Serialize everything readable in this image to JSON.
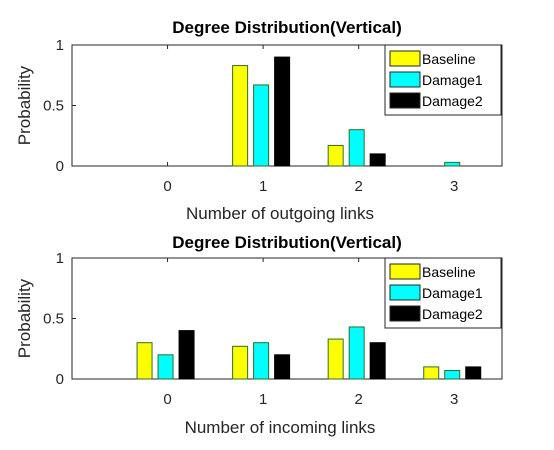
{
  "chart_data": [
    {
      "type": "bar",
      "title": "Degree Distribution(Vertical)",
      "xlabel": "Number of outgoing links",
      "ylabel": "Probability",
      "categories": [
        "0",
        "1",
        "2",
        "3"
      ],
      "ylim": [
        0,
        1
      ],
      "yticks": [
        "0",
        "0.5",
        "1"
      ],
      "xlim": [
        -1,
        3.5
      ],
      "grid": false,
      "legend_position": "top-right",
      "series": [
        {
          "name": "Baseline",
          "values": [
            0,
            0.83,
            0.17,
            0
          ],
          "color": "#ffff00"
        },
        {
          "name": "Damage1",
          "values": [
            0,
            0.67,
            0.3,
            0.03
          ],
          "color": "#00ffff"
        },
        {
          "name": "Damage2",
          "values": [
            0,
            0.9,
            0.1,
            0
          ],
          "color": "#000000"
        }
      ]
    },
    {
      "type": "bar",
      "title": "Degree Distribution(Vertical)",
      "xlabel": "Number of incoming links",
      "ylabel": "Probability",
      "categories": [
        "0",
        "1",
        "2",
        "3"
      ],
      "ylim": [
        0,
        1
      ],
      "yticks": [
        "0",
        "0.5",
        "1"
      ],
      "xlim": [
        -1,
        3.5
      ],
      "grid": false,
      "legend_position": "top-right",
      "series": [
        {
          "name": "Baseline",
          "values": [
            0.3,
            0.27,
            0.33,
            0.1
          ],
          "color": "#ffff00"
        },
        {
          "name": "Damage1",
          "values": [
            0.2,
            0.3,
            0.43,
            0.07
          ],
          "color": "#00ffff"
        },
        {
          "name": "Damage2",
          "values": [
            0.4,
            0.2,
            0.3,
            0.1
          ],
          "color": "#000000"
        }
      ]
    }
  ]
}
